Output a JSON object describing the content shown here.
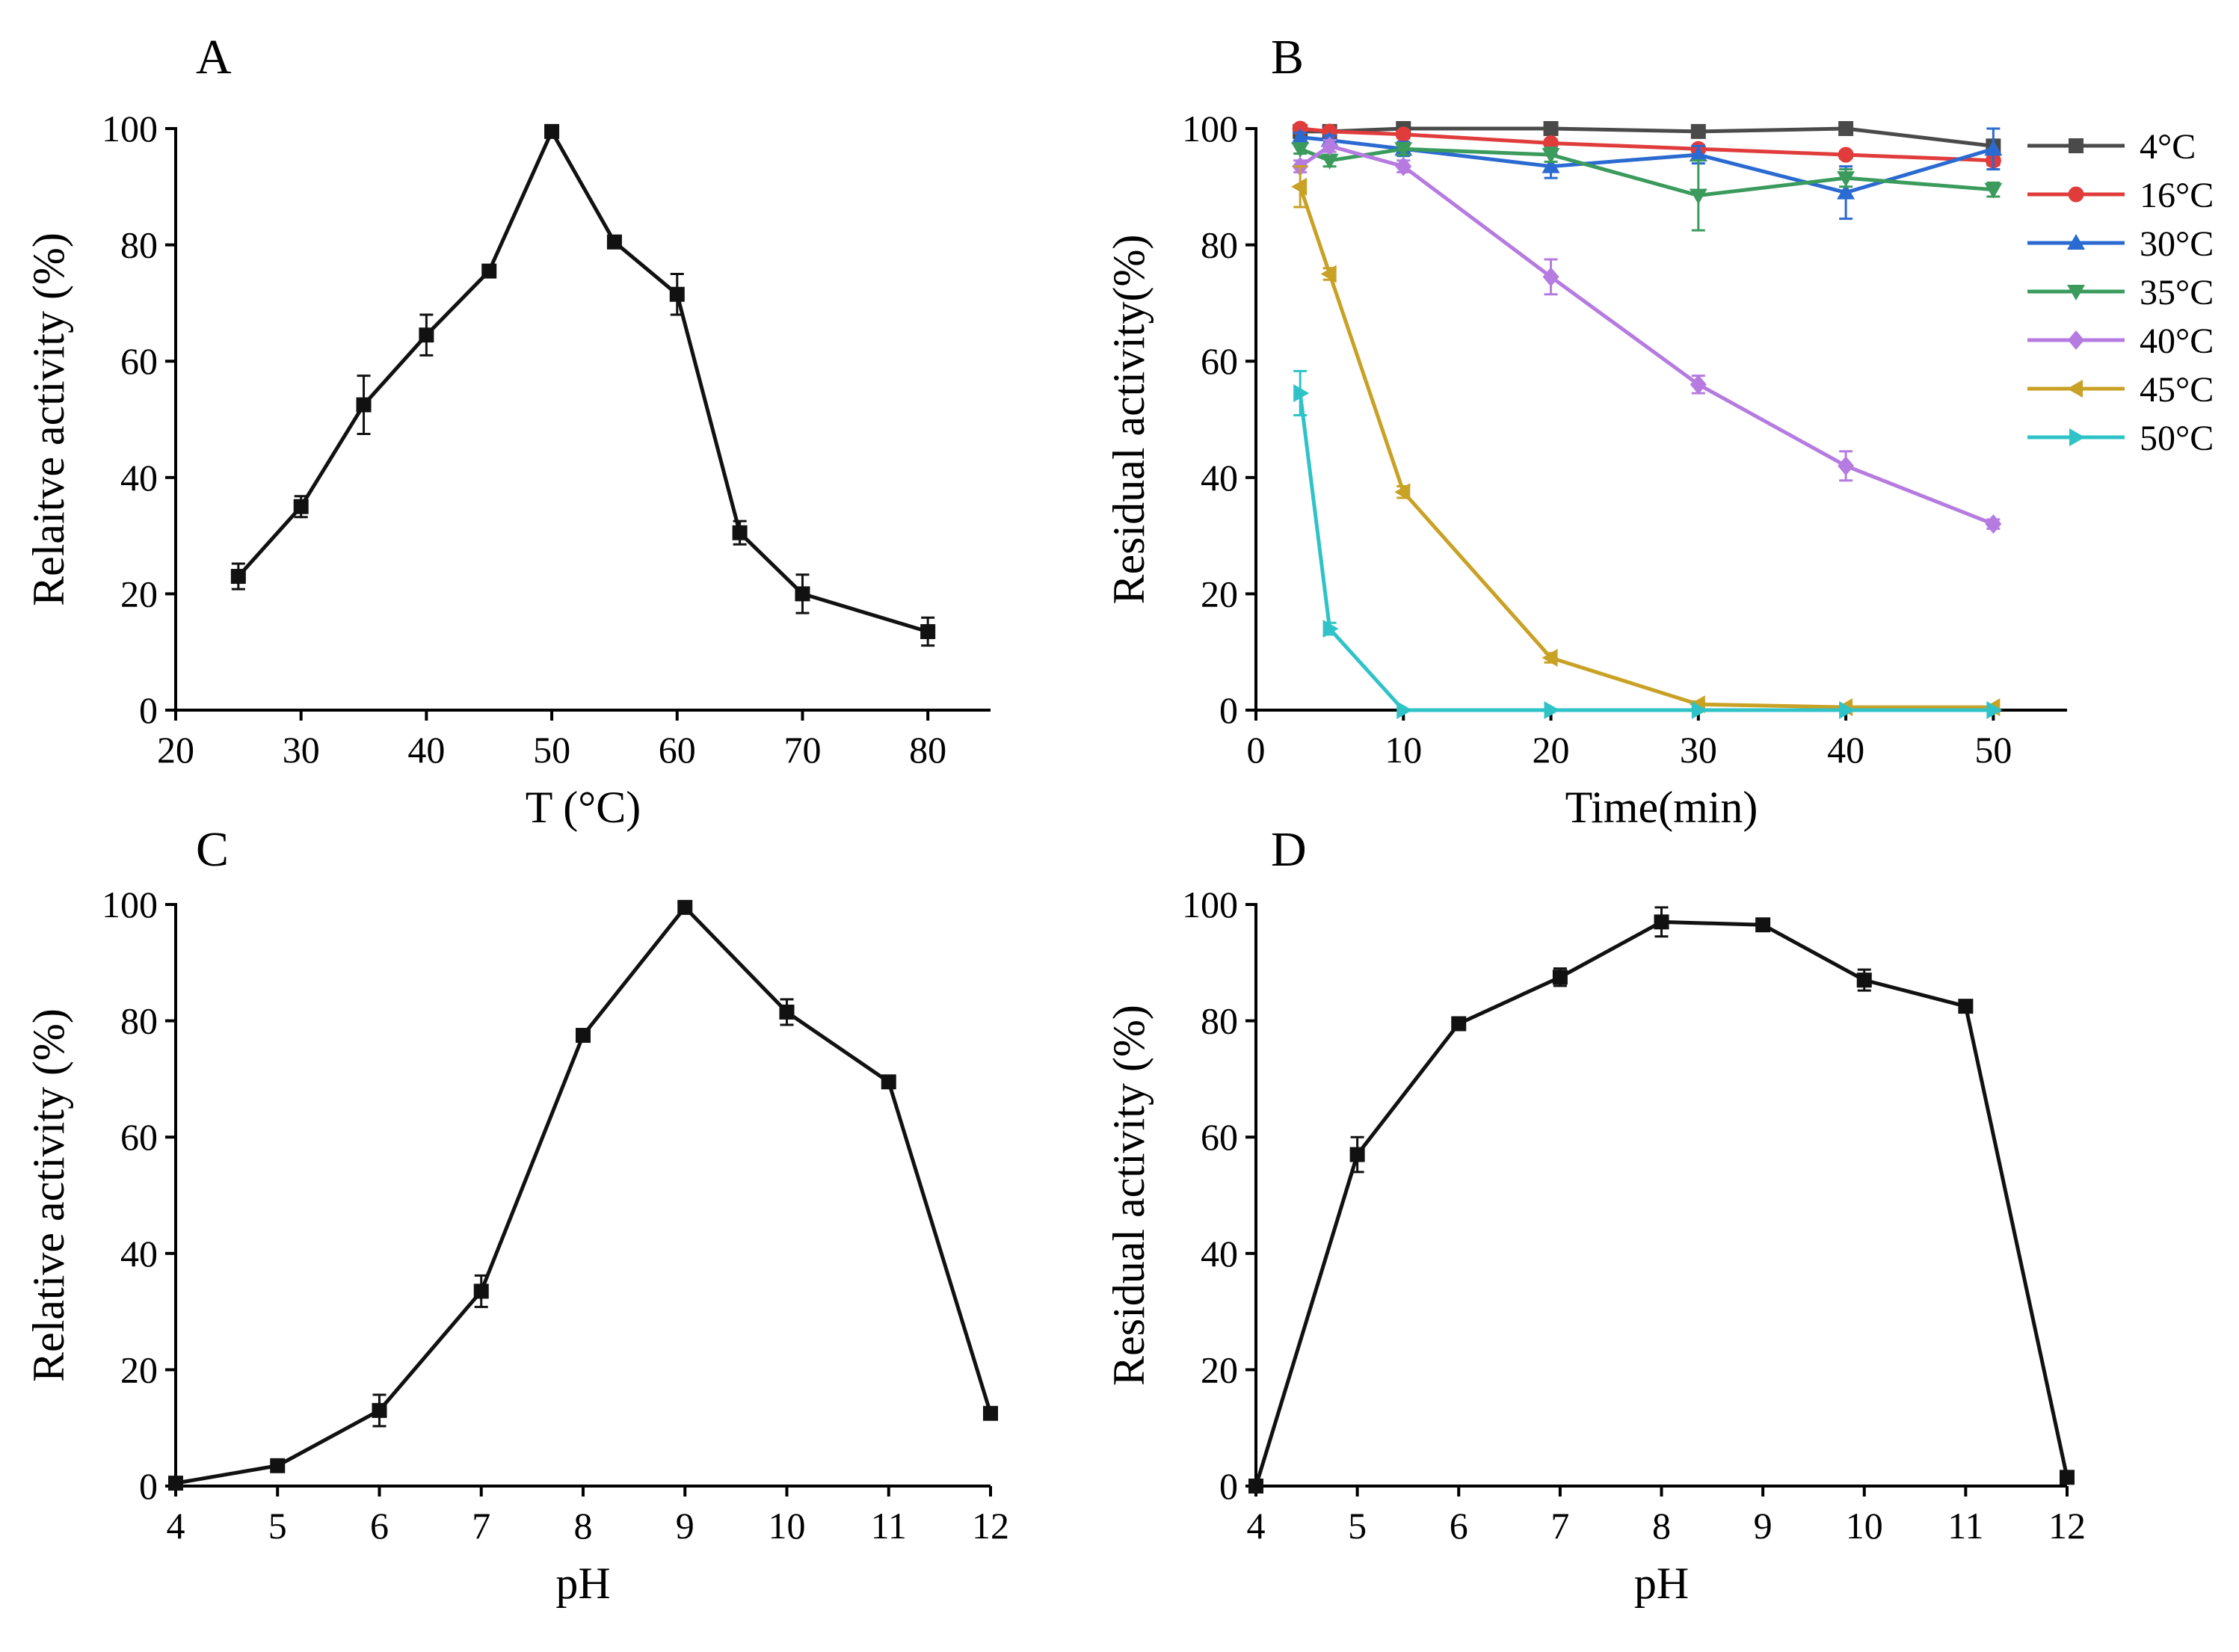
{
  "chart_data": [
    {
      "panel": "A",
      "type": "line",
      "title": "",
      "xlabel": "T (°C)",
      "ylabel": "Relaitve activity (%)",
      "xlim": [
        20,
        85
      ],
      "ylim": [
        0,
        100
      ],
      "xticks": [
        20,
        30,
        40,
        50,
        60,
        70,
        80
      ],
      "yticks": [
        0,
        20,
        40,
        60,
        80,
        100
      ],
      "series": [
        {
          "name": "Relative activity",
          "color": "#111111",
          "marker": "square",
          "x": [
            25,
            30,
            35,
            40,
            45,
            50,
            55,
            60,
            65,
            70,
            80
          ],
          "y": [
            23,
            35,
            52.5,
            64.5,
            75.5,
            99.5,
            80.5,
            71.5,
            30.5,
            20,
            13.5
          ],
          "err": [
            2.2,
            1.8,
            5.0,
            3.5,
            1.0,
            0.8,
            1.0,
            3.5,
            2.0,
            3.3,
            2.4
          ]
        }
      ]
    },
    {
      "panel": "B",
      "type": "line",
      "title": "",
      "xlabel": "Time(min)",
      "ylabel": "Residual activity(%)",
      "xlim": [
        0,
        55
      ],
      "ylim": [
        0,
        100
      ],
      "xticks": [
        0,
        10,
        20,
        30,
        40,
        50
      ],
      "yticks": [
        0,
        20,
        40,
        60,
        80,
        100
      ],
      "legend_position": "top-right",
      "series": [
        {
          "name": "4°C",
          "color": "#4a4a4a",
          "marker": "square",
          "x": [
            3,
            5,
            10,
            20,
            30,
            40,
            50
          ],
          "y": [
            99.5,
            99.5,
            100,
            100,
            99.5,
            100,
            97
          ],
          "err": [
            0.5,
            0.6,
            0.5,
            0.5,
            0.6,
            0.5,
            0.8
          ]
        },
        {
          "name": "16°C",
          "color": "#e03c3c",
          "marker": "circle",
          "x": [
            3,
            5,
            10,
            20,
            30,
            40,
            50
          ],
          "y": [
            100,
            99.5,
            99,
            97.5,
            96.5,
            95.5,
            94.5
          ],
          "err": [
            0.5,
            0.5,
            0.6,
            0.6,
            0.6,
            0.6,
            0.8
          ]
        },
        {
          "name": "30°C",
          "color": "#2a6ad1",
          "marker": "triangle-up",
          "x": [
            3,
            5,
            10,
            20,
            30,
            40,
            50
          ],
          "y": [
            98.5,
            98,
            96.5,
            93.5,
            95.5,
            89,
            96.5
          ],
          "err": [
            0.8,
            0.8,
            1.2,
            2.0,
            1.5,
            4.5,
            3.5
          ]
        },
        {
          "name": "35°C",
          "color": "#3a9b5d",
          "marker": "triangle-down",
          "x": [
            3,
            5,
            10,
            20,
            30,
            40,
            50
          ],
          "y": [
            96.5,
            94.5,
            96.5,
            95.5,
            88.5,
            91.5,
            89.5
          ],
          "err": [
            0.8,
            1.0,
            1.0,
            1.2,
            6.0,
            1.5,
            1.2
          ]
        },
        {
          "name": "40°C",
          "color": "#b57be0",
          "marker": "diamond",
          "x": [
            3,
            5,
            10,
            20,
            30,
            40,
            50
          ],
          "y": [
            93.5,
            97,
            93.5,
            74.5,
            56,
            42,
            32
          ],
          "err": [
            1.0,
            1.0,
            1.0,
            3.0,
            1.5,
            2.5,
            0.8
          ]
        },
        {
          "name": "45°C",
          "color": "#c9a125",
          "marker": "triangle-left",
          "x": [
            3,
            5,
            10,
            20,
            30,
            40,
            50
          ],
          "y": [
            90,
            75,
            37.5,
            9,
            1,
            0.5,
            0.5
          ],
          "err": [
            3.5,
            1.0,
            1.0,
            0.8,
            0.5,
            0.4,
            0.4
          ]
        },
        {
          "name": "50°C",
          "color": "#2fc3c8",
          "marker": "triangle-right",
          "x": [
            3,
            5,
            10,
            20,
            30,
            40,
            50
          ],
          "y": [
            54.5,
            14,
            0,
            0,
            0,
            0,
            0
          ],
          "err": [
            3.8,
            1.0,
            0.3,
            0.3,
            0.3,
            0.3,
            0.3
          ]
        }
      ]
    },
    {
      "panel": "C",
      "type": "line",
      "title": "",
      "xlabel": "pH",
      "ylabel": "Relative activity (%)",
      "xlim": [
        4,
        12
      ],
      "ylim": [
        0,
        100
      ],
      "xticks": [
        4,
        5,
        6,
        7,
        8,
        9,
        10,
        11,
        12
      ],
      "yticks": [
        0,
        20,
        40,
        60,
        80,
        100
      ],
      "series": [
        {
          "name": "Relative activity",
          "color": "#111111",
          "marker": "square",
          "x": [
            4,
            5,
            6,
            7,
            8,
            9,
            10,
            11,
            12
          ],
          "y": [
            0.5,
            3.5,
            13,
            33.5,
            77.5,
            99.5,
            81.5,
            69.5,
            12.5
          ],
          "err": [
            0.3,
            0.4,
            2.7,
            2.7,
            0.6,
            0.5,
            2.2,
            0.6,
            0.5
          ]
        }
      ]
    },
    {
      "panel": "D",
      "type": "line",
      "title": "",
      "xlabel": "pH",
      "ylabel": "Residual activity (%)",
      "xlim": [
        4,
        12
      ],
      "ylim": [
        0,
        100
      ],
      "xticks": [
        4,
        5,
        6,
        7,
        8,
        9,
        10,
        11,
        12
      ],
      "yticks": [
        0,
        20,
        40,
        60,
        80,
        100
      ],
      "series": [
        {
          "name": "Residual activity",
          "color": "#111111",
          "marker": "square",
          "x": [
            4,
            5,
            6,
            7,
            8,
            9,
            10,
            11,
            12
          ],
          "y": [
            0,
            57,
            79.5,
            87.5,
            97,
            96.5,
            87,
            82.5,
            1.5
          ],
          "err": [
            0.3,
            3.0,
            1.0,
            1.5,
            2.5,
            0.8,
            1.8,
            0.6,
            0.6
          ]
        }
      ]
    }
  ]
}
